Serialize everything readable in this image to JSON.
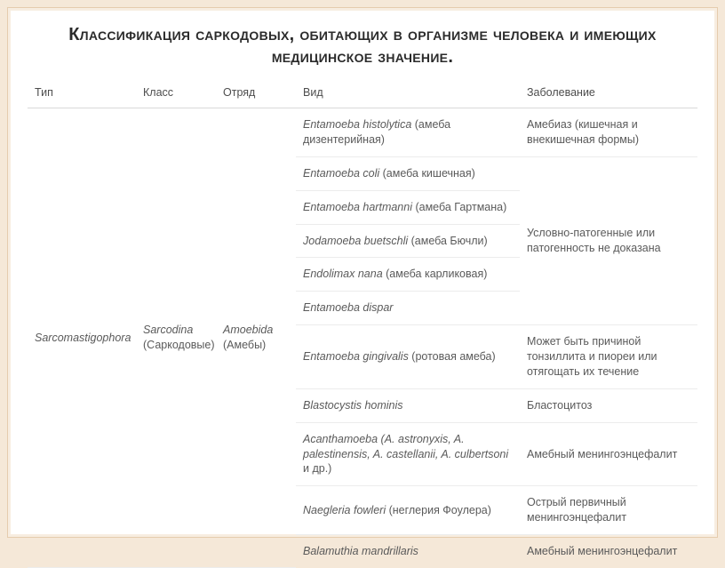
{
  "title": "Классификация саркодовых, обитающих в организме человека и имеющих медицинское значение.",
  "columns": [
    "Тип",
    "Класс",
    "Отряд",
    "Вид",
    "Заболевание"
  ],
  "type_col": {
    "italic": "Sarcomastigophora"
  },
  "class_col": {
    "italic": "Sarcodina",
    "plain": "(Саркодовые)"
  },
  "order_col": {
    "italic": "Amoebida",
    "plain": "(Амебы)"
  },
  "rows": [
    {
      "species_it": "Entamoeba histolytica",
      "species_pl": " (амеба дизентерийная)",
      "disease": "Амебиаз (кишечная и внекишечная формы)"
    },
    {
      "species_it": "Entamoeba coli",
      "species_pl": " (амеба кишечная)"
    },
    {
      "species_it": "Entamoeba hartmanni",
      "species_pl": " (амеба Гартмана)"
    },
    {
      "species_it": "Jodamoeba buetschli",
      "species_pl": " (амеба Бючли)"
    },
    {
      "species_it": "Endolimax nana",
      "species_pl": " (амеба карликовая)"
    },
    {
      "species_it": "Entamoeba dispar",
      "species_pl": ""
    },
    {
      "species_it": "Entamoeba gingivalis",
      "species_pl": " (ротовая амеба)",
      "disease": "Может быть причиной тонзиллита и пиореи или отягощать их течение"
    },
    {
      "species_it": "Blastocystis hominis",
      "species_pl": "",
      "disease": "Бластоцитоз"
    },
    {
      "species_it": "Acanthamoeba (A. astronyxis, A. palestinensis, A. castellanii, A. culbertsoni",
      "species_pl": " и др.)",
      "disease": "Амебный менингоэнцефалит"
    },
    {
      "species_it": "Naegleria fowleri",
      "species_pl": " (неглерия Фоулера)",
      "disease": "Острый первичный менингоэнцефалит"
    },
    {
      "species_it": "Balamuthia mandrillaris",
      "species_pl": "",
      "disease": "Амебный менингоэнцефалит"
    }
  ],
  "merged_disease": "Условно-патогенные или патогенность не доказана",
  "colors": {
    "page_bg": "#f5e8d8",
    "slide_bg": "#ffffff",
    "border": "#e5ccae",
    "row_border": "#ececec",
    "header_border": "#d9d9d9",
    "text": "#5a5a5a"
  },
  "fontsizes": {
    "title": 20,
    "body": 12.5
  }
}
